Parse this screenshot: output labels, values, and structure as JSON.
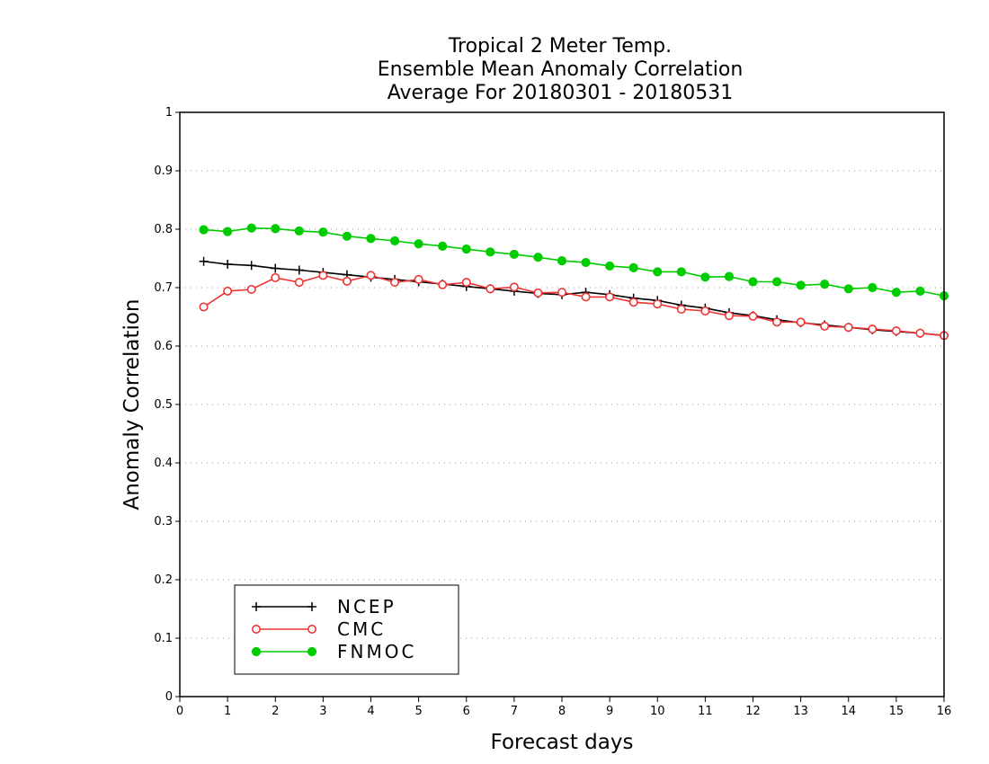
{
  "chart_data": {
    "type": "line",
    "title_lines": [
      "Tropical 2 Meter Temp.",
      "Ensemble Mean Anomaly Correlation",
      "Average For 20180301 - 20180531"
    ],
    "xlabel": "Forecast days",
    "ylabel": "Anomaly Correlation",
    "xlim": [
      0,
      16
    ],
    "ylim": [
      0,
      1
    ],
    "x_ticks": [
      "0",
      "1",
      "2",
      "3",
      "4",
      "5",
      "6",
      "7",
      "8",
      "9",
      "10",
      "11",
      "12",
      "13",
      "14",
      "15",
      "16"
    ],
    "y_ticks": [
      "0",
      "0.1",
      "0.2",
      "0.3",
      "0.4",
      "0.5",
      "0.6",
      "0.7",
      "0.8",
      "0.9",
      "1"
    ],
    "grid": "horizontal-dotted",
    "legend_position": "bottom-left",
    "x": [
      0.5,
      1,
      1.5,
      2,
      2.5,
      3,
      3.5,
      4,
      4.5,
      5,
      5.5,
      6,
      6.5,
      7,
      7.5,
      8,
      8.5,
      9,
      9.5,
      10,
      10.5,
      11,
      11.5,
      12,
      12.5,
      13,
      13.5,
      14,
      14.5,
      15,
      15.5,
      16
    ],
    "series": [
      {
        "name": "NCEP",
        "color": "#000000",
        "marker": "plus",
        "values": [
          0.745,
          0.74,
          0.738,
          0.733,
          0.73,
          0.726,
          0.722,
          0.718,
          0.714,
          0.71,
          0.706,
          0.702,
          0.698,
          0.694,
          0.69,
          0.688,
          0.692,
          0.688,
          0.682,
          0.678,
          0.67,
          0.665,
          0.657,
          0.652,
          0.645,
          0.64,
          0.636,
          0.632,
          0.628,
          0.625,
          0.622,
          0.618
        ]
      },
      {
        "name": "CMC",
        "color": "#ee3333",
        "marker": "open-circle",
        "values": [
          0.667,
          0.694,
          0.697,
          0.717,
          0.709,
          0.721,
          0.711,
          0.721,
          0.709,
          0.714,
          0.705,
          0.709,
          0.698,
          0.701,
          0.691,
          0.692,
          0.684,
          0.684,
          0.675,
          0.672,
          0.663,
          0.66,
          0.652,
          0.651,
          0.641,
          0.641,
          0.634,
          0.632,
          0.629,
          0.626,
          0.622,
          0.618
        ]
      },
      {
        "name": "FNMOC",
        "color": "#00cc00",
        "marker": "filled-circle",
        "values": [
          0.799,
          0.796,
          0.802,
          0.801,
          0.797,
          0.795,
          0.788,
          0.784,
          0.78,
          0.775,
          0.771,
          0.766,
          0.761,
          0.757,
          0.752,
          0.746,
          0.743,
          0.737,
          0.734,
          0.727,
          0.727,
          0.718,
          0.719,
          0.71,
          0.71,
          0.704,
          0.706,
          0.698,
          0.7,
          0.692,
          0.694,
          0.686
        ]
      }
    ]
  }
}
